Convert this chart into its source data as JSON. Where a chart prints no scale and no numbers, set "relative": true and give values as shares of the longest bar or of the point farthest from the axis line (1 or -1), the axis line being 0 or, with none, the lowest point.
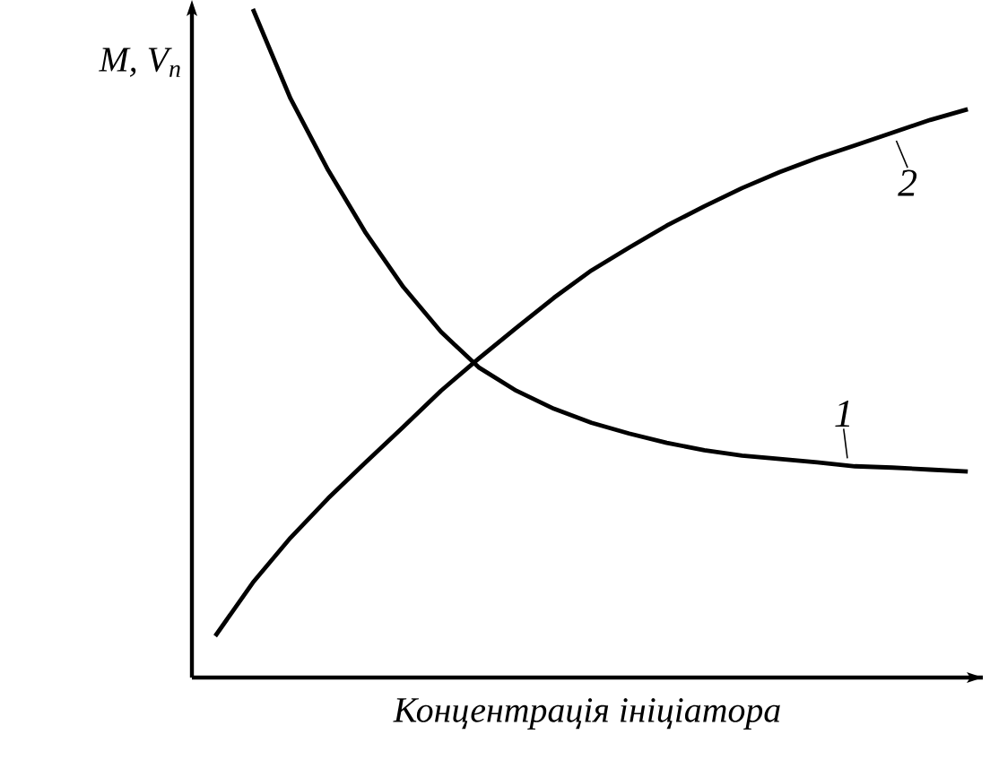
{
  "chart_data": {
    "type": "line",
    "relative": true,
    "xlabel": "Концентрація ініціатора",
    "ylabel": "M, V$_{n}$",
    "categories": [
      null,
      null,
      null,
      null,
      null,
      null,
      null,
      null,
      null,
      null,
      null,
      null,
      null,
      null,
      null,
      null,
      null,
      null,
      null,
      null,
      null
    ],
    "series": [
      {
        "name": "1",
        "color": "#000000",
        "values": [
          null,
          1,
          0.866,
          0.759,
          0.665,
          0.584,
          0.517,
          0.464,
          0.429,
          0.402,
          0.381,
          0.365,
          0.351,
          0.34,
          0.332,
          0.327,
          0.322,
          0.316,
          0.314,
          0.311,
          0.308
        ]
      },
      {
        "name": "2",
        "color": "#000000",
        "values": [
          0.062,
          0.142,
          0.209,
          0.268,
          0.322,
          0.375,
          0.429,
          0.477,
          0.523,
          0.568,
          0.609,
          0.643,
          0.676,
          0.705,
          0.732,
          0.756,
          0.777,
          0.796,
          0.815,
          0.834,
          0.85
        ]
      }
    ]
  }
}
